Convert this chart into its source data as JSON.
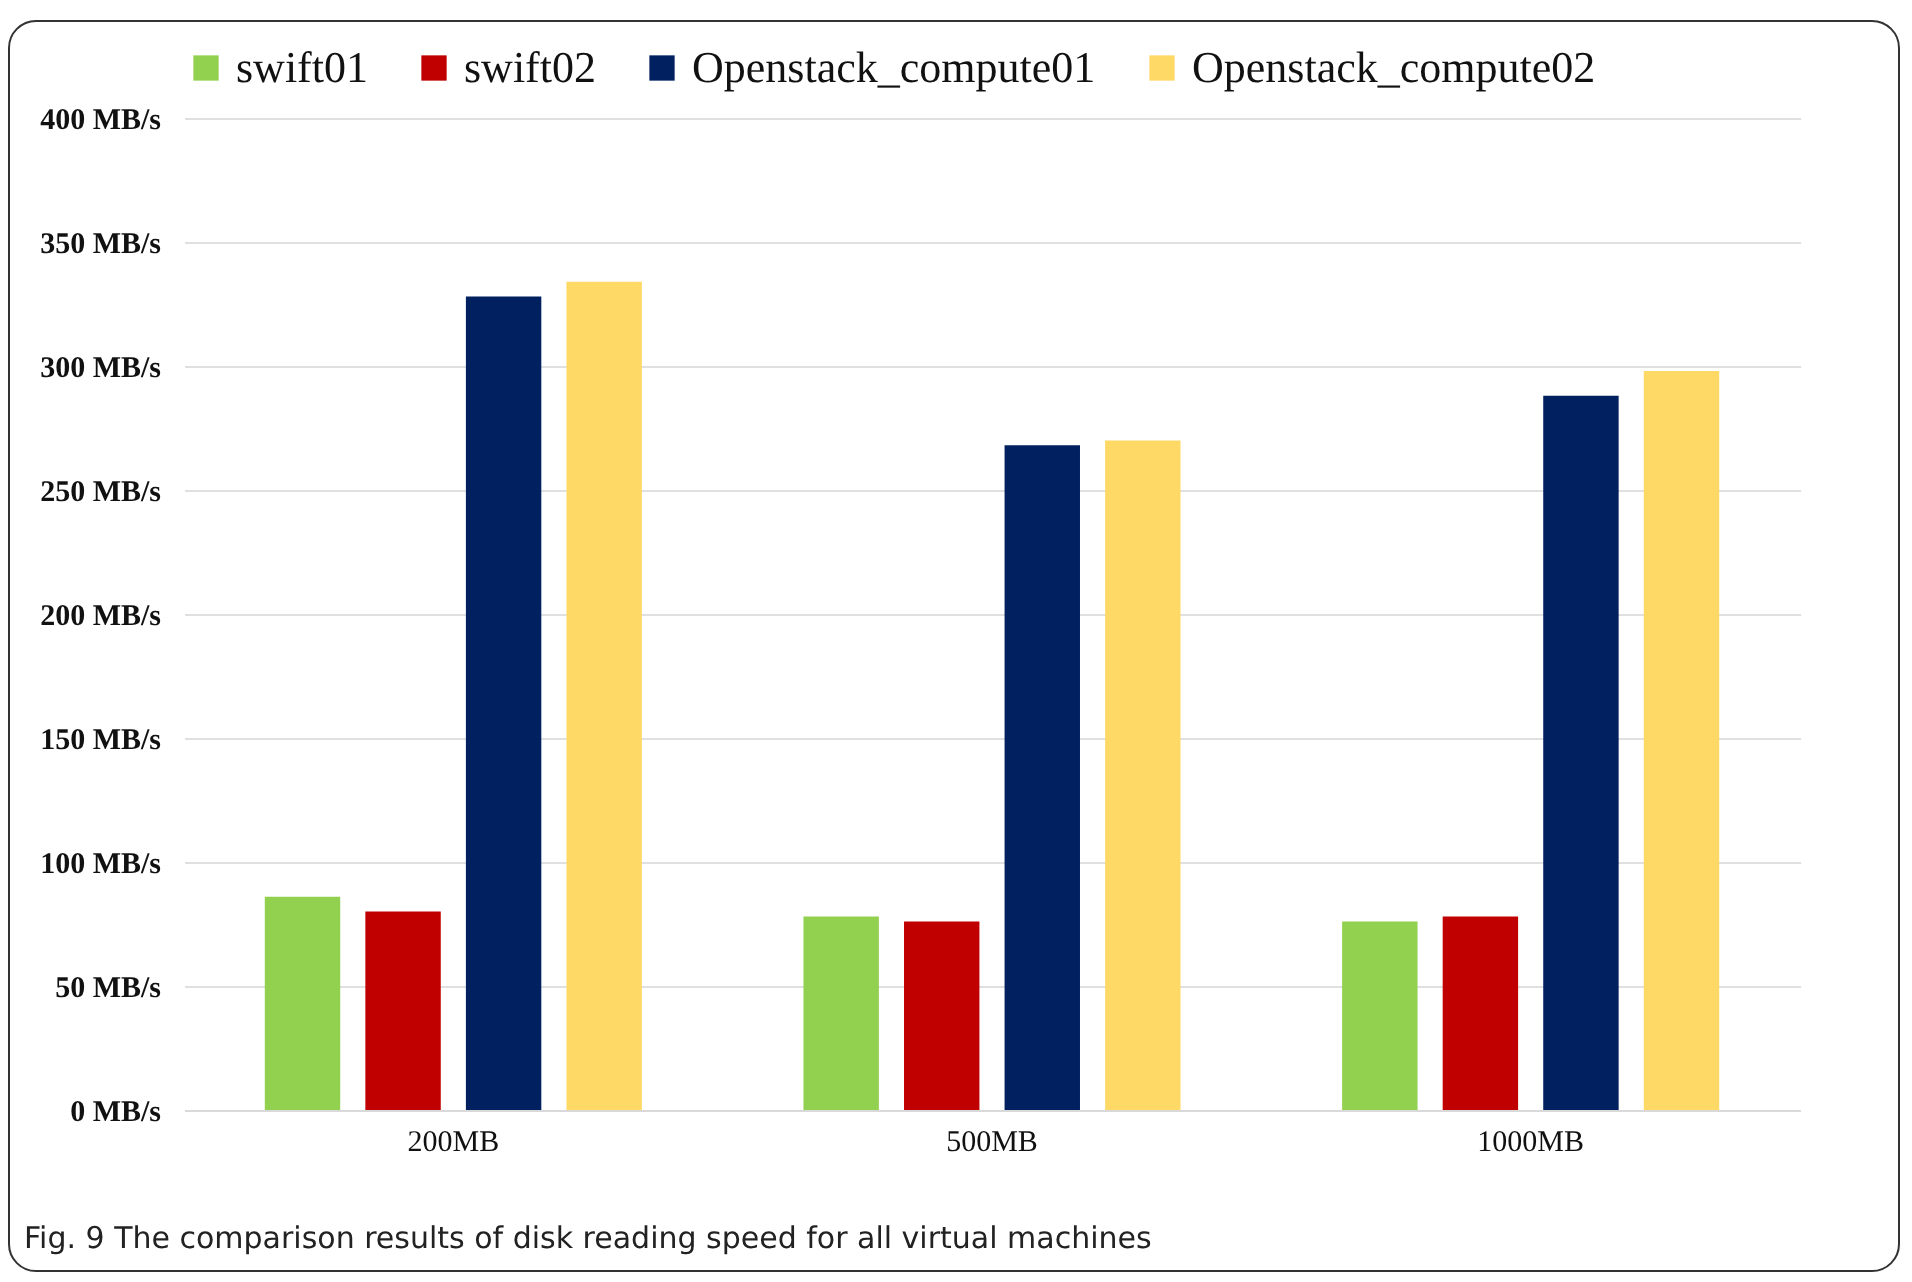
{
  "chart_data": {
    "type": "bar",
    "categories": [
      "200MB",
      "500MB",
      "1000MB"
    ],
    "series": [
      {
        "name": "swift01",
        "color": "#92d050",
        "values": [
          86,
          78,
          76
        ]
      },
      {
        "name": "swift02",
        "color": "#c00000",
        "values": [
          80,
          76,
          78
        ]
      },
      {
        "name": "Openstack_compute01",
        "color": "#002060",
        "values": [
          328,
          268,
          288
        ]
      },
      {
        "name": "Openstack_compute02",
        "color": "#ffd966",
        "values": [
          334,
          270,
          298
        ]
      }
    ],
    "ylim": [
      0,
      400
    ],
    "yticks": [
      {
        "value": 0,
        "label": "0  MB/s"
      },
      {
        "value": 50,
        "label": "50  MB/s"
      },
      {
        "value": 100,
        "label": "100  MB/s"
      },
      {
        "value": 150,
        "label": "150  MB/s"
      },
      {
        "value": 200,
        "label": "200  MB/s"
      },
      {
        "value": 250,
        "label": "250  MB/s"
      },
      {
        "value": 300,
        "label": "300  MB/s"
      },
      {
        "value": 350,
        "label": "350  MB/s"
      },
      {
        "value": 400,
        "label": "400  MB/s"
      }
    ],
    "grid": "y",
    "legend": "top",
    "annotations": [
      "Fig. 9  The comparison results of disk reading speed for all virtual machines"
    ]
  }
}
